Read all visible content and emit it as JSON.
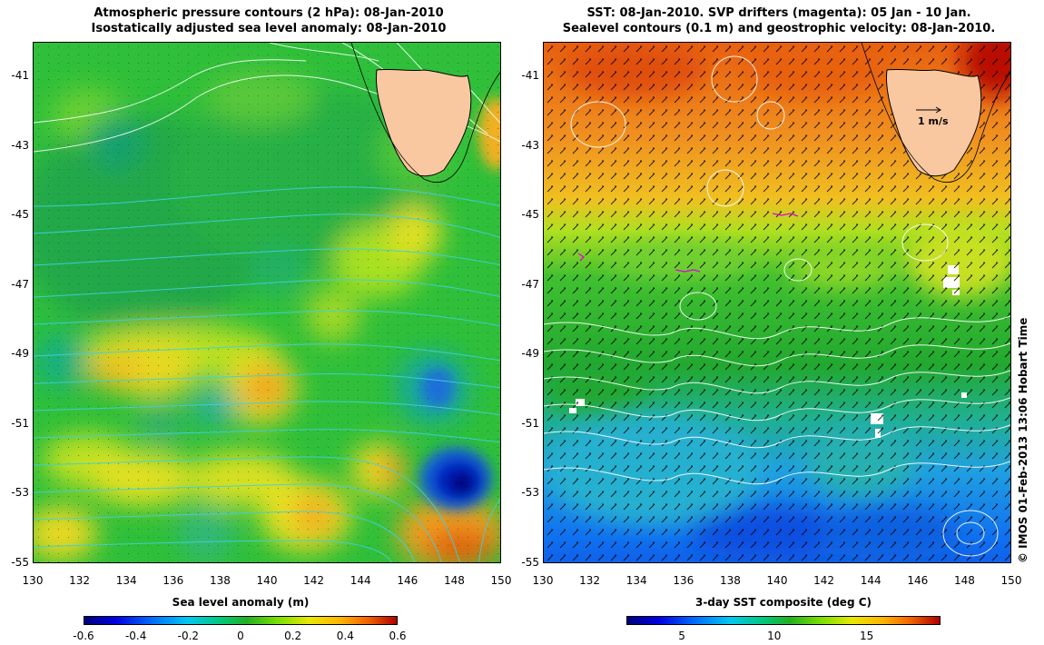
{
  "left_panel": {
    "title_line1": "Atmospheric pressure contours (2 hPa): 08-Jan-2010",
    "title_line2": "Isostatically adjusted sea level anomaly: 08-Jan-2010",
    "colorbar_title": "Sea level anomaly (m)",
    "colorbar_ticks": [
      "-0.6",
      "-0.4",
      "-0.2",
      "0",
      "0.2",
      "0.4",
      "0.6"
    ],
    "colorbar_range": [
      -0.6,
      0.6
    ]
  },
  "right_panel": {
    "title_line1": "SST: 08-Jan-2010. SVP drifters (magenta): 05 Jan - 10 Jan.",
    "title_line2": "Sealevel contours (0.1 m) and geostrophic velocity: 08-Jan-2010.",
    "colorbar_title": "3-day SST composite (deg C)",
    "colorbar_ticks": [
      "5",
      "10",
      "15"
    ],
    "colorbar_tick_values": [
      5,
      10,
      15
    ],
    "colorbar_range": [
      2,
      19
    ],
    "velocity_scale_label": "1 m/s"
  },
  "axes": {
    "lat_ticks": [
      "-41",
      "-43",
      "-45",
      "-47",
      "-49",
      "-51",
      "-53",
      "-55"
    ],
    "lat_values": [
      -41,
      -43,
      -45,
      -47,
      -49,
      -51,
      -53,
      -55
    ],
    "lat_range": [
      -40,
      -55
    ],
    "lon_ticks": [
      "130",
      "132",
      "134",
      "136",
      "138",
      "140",
      "142",
      "144",
      "146",
      "148",
      "150"
    ],
    "lon_values": [
      130,
      132,
      134,
      136,
      138,
      140,
      142,
      144,
      146,
      148,
      150
    ],
    "lon_range": [
      130,
      150
    ]
  },
  "credit": "© IMOS 01-Feb-2013 13:06 Hobart Time",
  "colors": {
    "land": "#f9c8a0",
    "coast": "#000000",
    "pressure_contour": "#ffffff",
    "sealevel_contour": "#40d0e0",
    "drifters": "#e000e0"
  }
}
